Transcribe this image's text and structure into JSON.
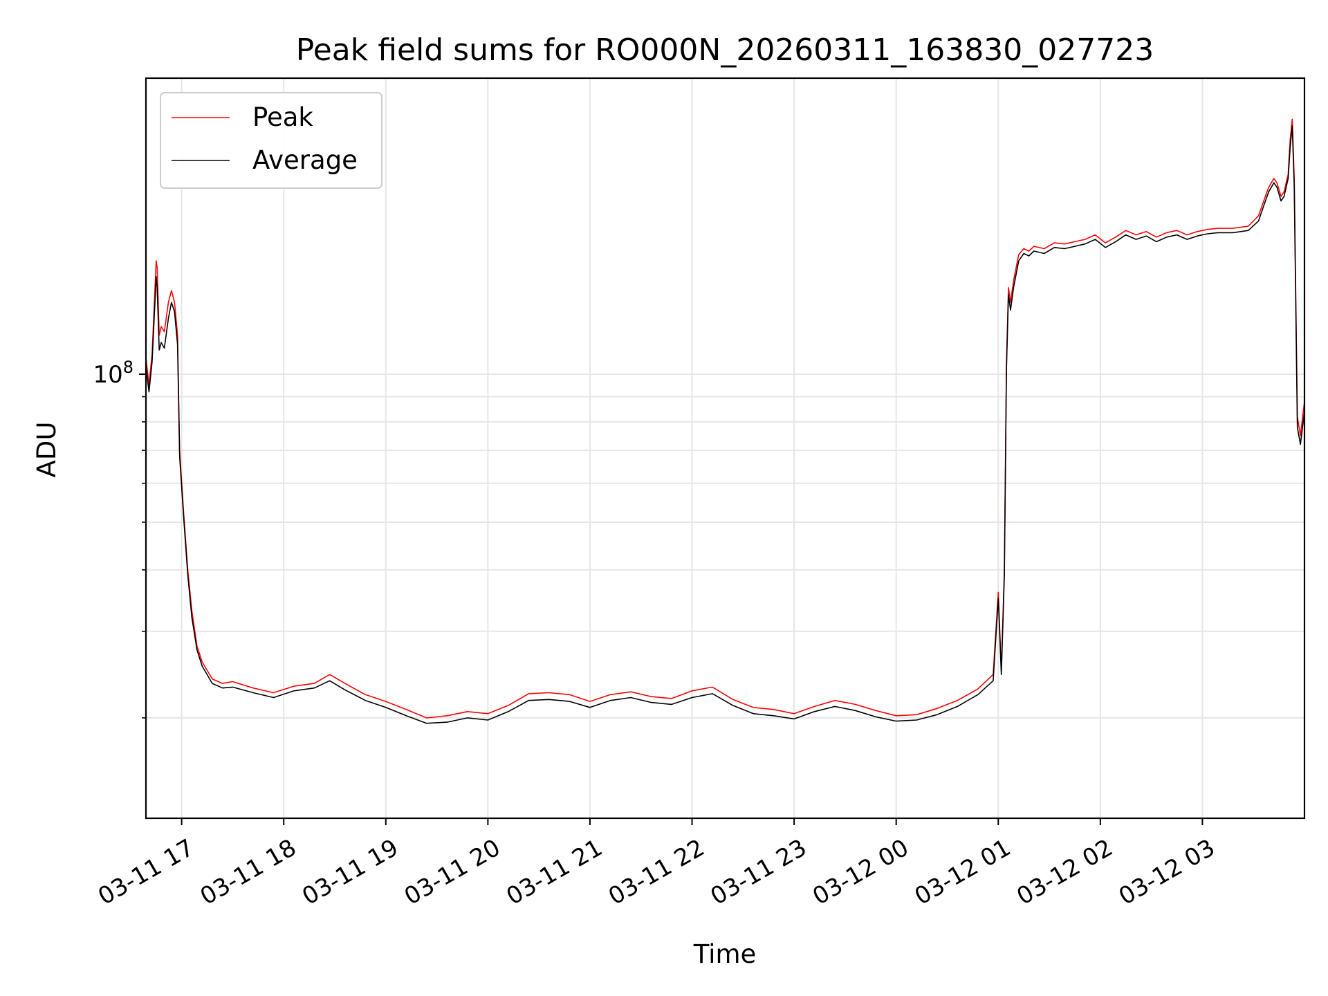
{
  "chart_data": {
    "type": "line",
    "title": "Peak field sums for RO000N_20260311_163830_027723",
    "xlabel": "Time",
    "ylabel": "ADU",
    "y_scale": "log",
    "ylim": [
      12500000,
      400000000
    ],
    "xlim_hours": [
      16.65,
      28.0
    ],
    "grid": true,
    "legend": {
      "position": "top-left",
      "entries": [
        "Peak",
        "Average"
      ]
    },
    "x_ticks": [
      {
        "hour": 17,
        "label": "03-11 17"
      },
      {
        "hour": 18,
        "label": "03-11 18"
      },
      {
        "hour": 19,
        "label": "03-11 19"
      },
      {
        "hour": 20,
        "label": "03-11 20"
      },
      {
        "hour": 21,
        "label": "03-11 21"
      },
      {
        "hour": 22,
        "label": "03-11 22"
      },
      {
        "hour": 23,
        "label": "03-11 23"
      },
      {
        "hour": 24,
        "label": "03-12 00"
      },
      {
        "hour": 25,
        "label": "03-12 01"
      },
      {
        "hour": 26,
        "label": "03-12 02"
      },
      {
        "hour": 27,
        "label": "03-12 03"
      }
    ],
    "y_major_ticks": [
      {
        "value": 100000000,
        "base": "10",
        "exp": "8"
      }
    ],
    "y_minor_ticks": [
      20000000,
      30000000,
      40000000,
      50000000,
      60000000,
      70000000,
      80000000,
      90000000
    ],
    "series": [
      {
        "name": "Peak",
        "color": "#ff0000",
        "x": [
          16.65,
          16.68,
          16.71,
          16.75,
          16.76,
          16.78,
          16.8,
          16.83,
          16.87,
          16.9,
          16.93,
          16.96,
          16.98,
          17.02,
          17.06,
          17.1,
          17.15,
          17.2,
          17.3,
          17.4,
          17.5,
          17.7,
          17.9,
          18.1,
          18.3,
          18.45,
          18.6,
          18.8,
          19.0,
          19.2,
          19.4,
          19.6,
          19.8,
          20.0,
          20.2,
          20.4,
          20.6,
          20.8,
          21.0,
          21.2,
          21.4,
          21.6,
          21.8,
          22.0,
          22.2,
          22.4,
          22.6,
          22.8,
          23.0,
          23.2,
          23.4,
          23.6,
          23.8,
          24.0,
          24.2,
          24.4,
          24.6,
          24.8,
          24.95,
          25.0,
          25.03,
          25.06,
          25.08,
          25.1,
          25.12,
          25.15,
          25.2,
          25.25,
          25.3,
          25.35,
          25.45,
          25.55,
          25.65,
          25.75,
          25.85,
          25.95,
          26.05,
          26.15,
          26.25,
          26.35,
          26.45,
          26.55,
          26.65,
          26.75,
          26.85,
          26.95,
          27.05,
          27.15,
          27.3,
          27.45,
          27.55,
          27.6,
          27.65,
          27.7,
          27.73,
          27.77,
          27.8,
          27.84,
          27.86,
          27.88,
          27.9,
          27.93,
          27.96,
          28.0
        ],
        "y": [
          108000000,
          95000000,
          110000000,
          170000000,
          165000000,
          120000000,
          125000000,
          122000000,
          140000000,
          148000000,
          140000000,
          120000000,
          70000000,
          52000000,
          40000000,
          33000000,
          28000000,
          26000000,
          24000000,
          23500000,
          23700000,
          23000000,
          22500000,
          23200000,
          23500000,
          24500000,
          23500000,
          22300000,
          21600000,
          20800000,
          20000000,
          20200000,
          20600000,
          20400000,
          21200000,
          22400000,
          22500000,
          22300000,
          21600000,
          22300000,
          22600000,
          22100000,
          21900000,
          22700000,
          23100000,
          21800000,
          21000000,
          20800000,
          20400000,
          21100000,
          21700000,
          21300000,
          20700000,
          20200000,
          20300000,
          20900000,
          21700000,
          22900000,
          24500000,
          36000000,
          25000000,
          40000000,
          105000000,
          150000000,
          140000000,
          155000000,
          175000000,
          180000000,
          178000000,
          182000000,
          180000000,
          185000000,
          184000000,
          186000000,
          188000000,
          192000000,
          185000000,
          190000000,
          196000000,
          192000000,
          195000000,
          190000000,
          194000000,
          196000000,
          192000000,
          195000000,
          197000000,
          198000000,
          198000000,
          200000000,
          210000000,
          225000000,
          240000000,
          250000000,
          245000000,
          230000000,
          235000000,
          255000000,
          300000000,
          330000000,
          250000000,
          82000000,
          75000000,
          88000000
        ]
      },
      {
        "name": "Average",
        "color": "#000000",
        "x": [
          16.65,
          16.68,
          16.71,
          16.75,
          16.76,
          16.78,
          16.8,
          16.83,
          16.87,
          16.9,
          16.93,
          16.96,
          16.98,
          17.02,
          17.06,
          17.1,
          17.15,
          17.2,
          17.3,
          17.4,
          17.5,
          17.7,
          17.9,
          18.1,
          18.3,
          18.45,
          18.6,
          18.8,
          19.0,
          19.2,
          19.4,
          19.6,
          19.8,
          20.0,
          20.2,
          20.4,
          20.6,
          20.8,
          21.0,
          21.2,
          21.4,
          21.6,
          21.8,
          22.0,
          22.2,
          22.4,
          22.6,
          22.8,
          23.0,
          23.2,
          23.4,
          23.6,
          23.8,
          24.0,
          24.2,
          24.4,
          24.6,
          24.8,
          24.95,
          25.0,
          25.03,
          25.06,
          25.08,
          25.1,
          25.12,
          25.15,
          25.2,
          25.25,
          25.3,
          25.35,
          25.45,
          25.55,
          25.65,
          25.75,
          25.85,
          25.95,
          26.05,
          26.15,
          26.25,
          26.35,
          26.45,
          26.55,
          26.65,
          26.75,
          26.85,
          26.95,
          27.05,
          27.15,
          27.3,
          27.45,
          27.55,
          27.6,
          27.65,
          27.7,
          27.73,
          27.77,
          27.8,
          27.84,
          27.86,
          27.88,
          27.9,
          27.93,
          27.96,
          28.0
        ],
        "y": [
          104000000,
          92000000,
          106000000,
          158000000,
          150000000,
          112000000,
          116000000,
          113000000,
          130000000,
          140000000,
          134000000,
          115000000,
          68000000,
          51000000,
          39000000,
          32000000,
          27500000,
          25500000,
          23500000,
          23000000,
          23100000,
          22500000,
          22000000,
          22700000,
          23000000,
          23800000,
          22800000,
          21700000,
          21000000,
          20200000,
          19500000,
          19600000,
          20000000,
          19800000,
          20600000,
          21700000,
          21800000,
          21600000,
          21000000,
          21700000,
          22000000,
          21500000,
          21300000,
          22000000,
          22400000,
          21200000,
          20400000,
          20200000,
          19900000,
          20600000,
          21100000,
          20700000,
          20100000,
          19700000,
          19800000,
          20300000,
          21100000,
          22300000,
          23800000,
          35000000,
          24500000,
          39000000,
          102000000,
          145000000,
          135000000,
          150000000,
          170000000,
          176000000,
          174000000,
          178000000,
          176000000,
          181000000,
          180000000,
          182000000,
          184000000,
          188000000,
          181000000,
          186000000,
          192000000,
          188000000,
          191000000,
          186000000,
          190000000,
          192000000,
          188000000,
          191000000,
          193000000,
          194000000,
          194000000,
          196000000,
          205000000,
          220000000,
          235000000,
          245000000,
          240000000,
          225000000,
          230000000,
          250000000,
          290000000,
          320000000,
          240000000,
          78000000,
          72000000,
          84000000
        ]
      }
    ]
  }
}
